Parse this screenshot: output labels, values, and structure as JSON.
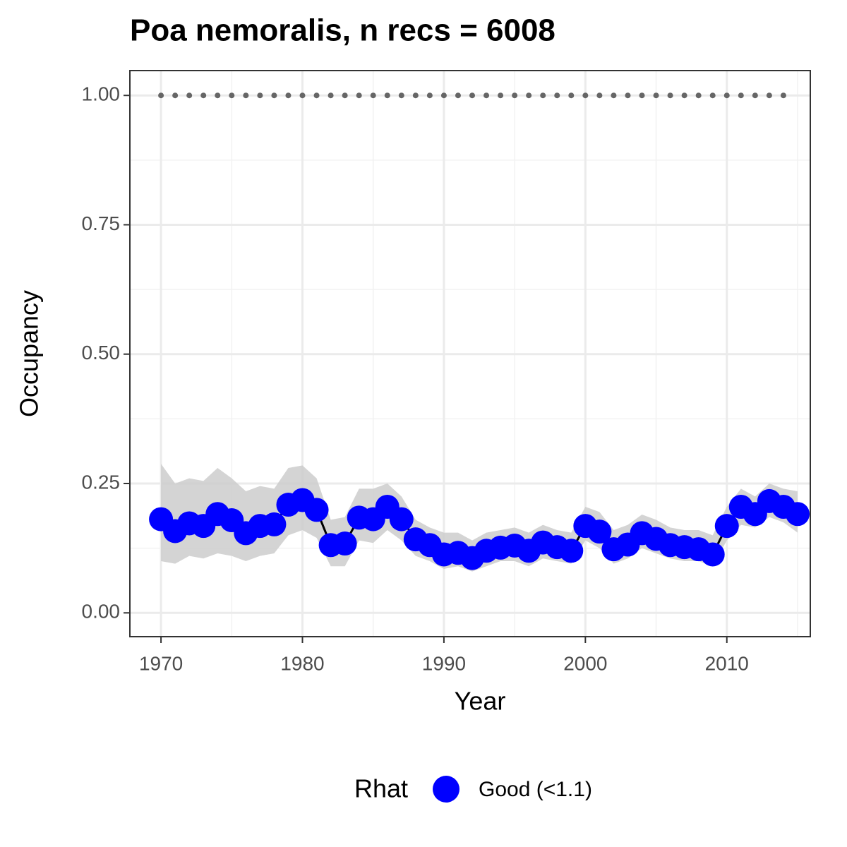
{
  "chart_data": {
    "type": "line",
    "title": "Poa nemoralis, n recs = 6008",
    "x_label": "Year",
    "y_label": "Occupancy",
    "x": [
      1970,
      1971,
      1972,
      1973,
      1974,
      1975,
      1976,
      1977,
      1978,
      1979,
      1980,
      1981,
      1982,
      1983,
      1984,
      1985,
      1986,
      1987,
      1988,
      1989,
      1990,
      1991,
      1992,
      1993,
      1994,
      1995,
      1996,
      1997,
      1998,
      1999,
      2000,
      2001,
      2002,
      2003,
      2004,
      2005,
      2006,
      2007,
      2008,
      2009,
      2010,
      2011,
      2012,
      2013,
      2014,
      2015
    ],
    "series": [
      {
        "name": "Good (<1.1)",
        "color": "#0000ff",
        "line_color": "#000000",
        "ribbon_color": "#cccccc",
        "values": [
          0.181,
          0.158,
          0.173,
          0.168,
          0.191,
          0.179,
          0.154,
          0.168,
          0.171,
          0.209,
          0.218,
          0.199,
          0.131,
          0.134,
          0.184,
          0.181,
          0.205,
          0.181,
          0.142,
          0.131,
          0.113,
          0.116,
          0.106,
          0.12,
          0.126,
          0.13,
          0.12,
          0.136,
          0.127,
          0.12,
          0.168,
          0.157,
          0.123,
          0.132,
          0.154,
          0.143,
          0.131,
          0.127,
          0.123,
          0.113,
          0.168,
          0.205,
          0.191,
          0.216,
          0.205,
          0.191
        ],
        "lower": [
          0.1,
          0.095,
          0.11,
          0.105,
          0.115,
          0.11,
          0.1,
          0.11,
          0.115,
          0.15,
          0.16,
          0.145,
          0.09,
          0.09,
          0.14,
          0.135,
          0.16,
          0.14,
          0.11,
          0.1,
          0.085,
          0.09,
          0.08,
          0.09,
          0.1,
          0.1,
          0.09,
          0.105,
          0.1,
          0.095,
          0.14,
          0.125,
          0.095,
          0.105,
          0.125,
          0.115,
          0.105,
          0.1,
          0.1,
          0.09,
          0.14,
          0.17,
          0.165,
          0.185,
          0.175,
          0.155
        ],
        "upper": [
          0.288,
          0.25,
          0.26,
          0.255,
          0.28,
          0.26,
          0.235,
          0.245,
          0.24,
          0.28,
          0.285,
          0.26,
          0.18,
          0.185,
          0.24,
          0.24,
          0.25,
          0.225,
          0.18,
          0.165,
          0.155,
          0.155,
          0.14,
          0.155,
          0.16,
          0.165,
          0.155,
          0.17,
          0.16,
          0.155,
          0.205,
          0.195,
          0.16,
          0.17,
          0.19,
          0.18,
          0.165,
          0.16,
          0.16,
          0.15,
          0.205,
          0.24,
          0.225,
          0.25,
          0.24,
          0.235
        ]
      }
    ],
    "hline": 1,
    "hline_color": "#666666",
    "xlim": [
      1967.8,
      2015.9
    ],
    "xticks": [
      1970,
      1980,
      1990,
      2000,
      2010
    ],
    "ylim": [
      -0.046,
      1.048
    ],
    "yticks": [
      {
        "value": 0,
        "label": "0.00"
      },
      {
        "value": 0.25,
        "label": "0.25"
      },
      {
        "value": 0.5,
        "label": "0.50"
      },
      {
        "value": 0.75,
        "label": "0.75"
      },
      {
        "value": 1,
        "label": "1.00"
      }
    ],
    "grid": true,
    "legend_title": "Rhat",
    "legend_position": "bottom"
  }
}
